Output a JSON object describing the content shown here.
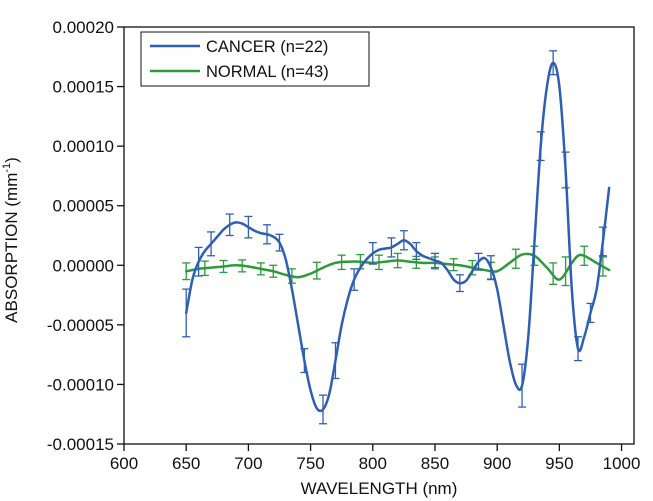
{
  "chart_data": {
    "type": "line",
    "title": "",
    "xlabel": "WAVELENGTH (nm)",
    "ylabel": "ABSORPTION (mm",
    "ylabel_sup": "-1",
    "ylabel_end": ")",
    "xlim": [
      600,
      1010
    ],
    "ylim": [
      -0.00015,
      0.0002
    ],
    "xticks": [
      600,
      650,
      700,
      750,
      800,
      850,
      900,
      950,
      1000
    ],
    "xtick_labels": [
      "600",
      "650",
      "700",
      "750",
      "800",
      "850",
      "900",
      "950",
      "1000"
    ],
    "yticks": [
      -0.00015,
      -0.0001,
      -5e-05,
      0,
      5e-05,
      0.0001,
      0.00015,
      0.0002
    ],
    "ytick_labels": [
      "-0.00015",
      "-0.00010",
      "-0.00005",
      "0.00000",
      "0.00005",
      "0.00010",
      "0.00015",
      "0.00020"
    ],
    "grid": false,
    "legend_position": "top-left",
    "series": [
      {
        "name": "CANCER (n=22)",
        "color": "#2f5fb3",
        "x": [
          650,
          655,
          660,
          665,
          670,
          675,
          680,
          685,
          690,
          695,
          700,
          705,
          710,
          715,
          720,
          725,
          730,
          735,
          740,
          745,
          750,
          755,
          760,
          765,
          770,
          775,
          780,
          785,
          790,
          795,
          800,
          805,
          810,
          815,
          820,
          825,
          830,
          835,
          840,
          845,
          850,
          855,
          860,
          865,
          870,
          875,
          880,
          885,
          890,
          895,
          900,
          905,
          910,
          915,
          920,
          925,
          930,
          935,
          940,
          945,
          950,
          955,
          960,
          965,
          970,
          975,
          980,
          985,
          990
        ],
        "y": [
          -4e-05,
          -1.2e-05,
          3e-06,
          1.2e-05,
          1.8e-05,
          2.4e-05,
          3e-05,
          3.4e-05,
          3.6e-05,
          3.5e-05,
          3.2e-05,
          2.9e-05,
          2.7e-05,
          2.6e-05,
          2.4e-05,
          1.9e-05,
          5e-06,
          -2e-05,
          -5e-05,
          -8e-05,
          -0.000105,
          -0.00012,
          -0.000121,
          -0.000108,
          -8e-05,
          -5e-05,
          -2.8e-05,
          -1.2e-05,
          -2e-06,
          5e-06,
          1e-05,
          1.3e-05,
          1.4e-05,
          1.5e-05,
          1.8e-05,
          2.1e-05,
          1.8e-05,
          1.2e-05,
          8e-06,
          6e-06,
          4e-06,
          2e-06,
          -4e-06,
          -1.2e-05,
          -1.5e-05,
          -1.3e-05,
          -5e-06,
          3e-06,
          6e-06,
          -2e-06,
          -2e-05,
          -5e-05,
          -8e-05,
          -0.0001,
          -0.000101,
          -6e-05,
          2e-05,
          0.0001,
          0.00015,
          0.00017,
          0.00015,
          8e-05,
          -2e-05,
          -7e-05,
          -6e-05,
          -4e-05,
          -2e-05,
          2e-05,
          6.5e-05
        ],
        "error_x": [
          650,
          660,
          670,
          685,
          700,
          715,
          725,
          745,
          760,
          770,
          785,
          800,
          815,
          825,
          835,
          850,
          870,
          885,
          895,
          920,
          935,
          945,
          955,
          965,
          975,
          985
        ],
        "error_y": [
          2e-05,
          1.2e-05,
          1e-05,
          9e-06,
          9e-06,
          8e-06,
          7e-06,
          1e-05,
          1.2e-05,
          1.5e-05,
          9e-06,
          9e-06,
          8e-06,
          8e-06,
          7e-06,
          6e-06,
          7e-06,
          7e-06,
          1e-05,
          1.8e-05,
          1.2e-05,
          1e-05,
          1.5e-05,
          1e-05,
          8e-06,
          1.2e-05
        ]
      },
      {
        "name": "NORMAL (n=43)",
        "color": "#2e9a3a",
        "x": [
          650,
          660,
          670,
          680,
          690,
          700,
          710,
          720,
          730,
          740,
          750,
          760,
          770,
          780,
          790,
          800,
          810,
          820,
          830,
          840,
          850,
          860,
          870,
          880,
          890,
          900,
          910,
          920,
          930,
          940,
          950,
          960,
          965,
          970,
          980,
          990
        ],
        "y": [
          -5e-06,
          -3e-06,
          -2e-06,
          -1e-06,
          0,
          -1e-06,
          -3e-06,
          -5e-06,
          -8e-06,
          -1e-05,
          -7e-06,
          -2e-06,
          2e-06,
          3e-06,
          3e-06,
          2e-06,
          3e-06,
          4e-06,
          3e-06,
          2e-06,
          2e-06,
          1e-06,
          0,
          -2e-06,
          -4e-06,
          -5e-06,
          2e-06,
          9e-06,
          8e-06,
          -2e-06,
          -1.2e-05,
          2e-06,
          8e-06,
          8e-06,
          2e-06,
          -4e-06
        ],
        "error_x": [
          650,
          665,
          680,
          695,
          710,
          720,
          735,
          755,
          775,
          790,
          805,
          820,
          835,
          850,
          865,
          880,
          895,
          915,
          930,
          945,
          955,
          970,
          985
        ],
        "error_y": [
          7e-06,
          6e-06,
          5e-06,
          5e-06,
          5e-06,
          5e-06,
          6e-06,
          7e-06,
          6e-06,
          6e-06,
          6e-06,
          6e-06,
          5e-06,
          5e-06,
          5e-06,
          6e-06,
          7e-06,
          8e-06,
          8e-06,
          9e-06,
          1.2e-05,
          8e-06,
          8e-06
        ]
      }
    ]
  }
}
